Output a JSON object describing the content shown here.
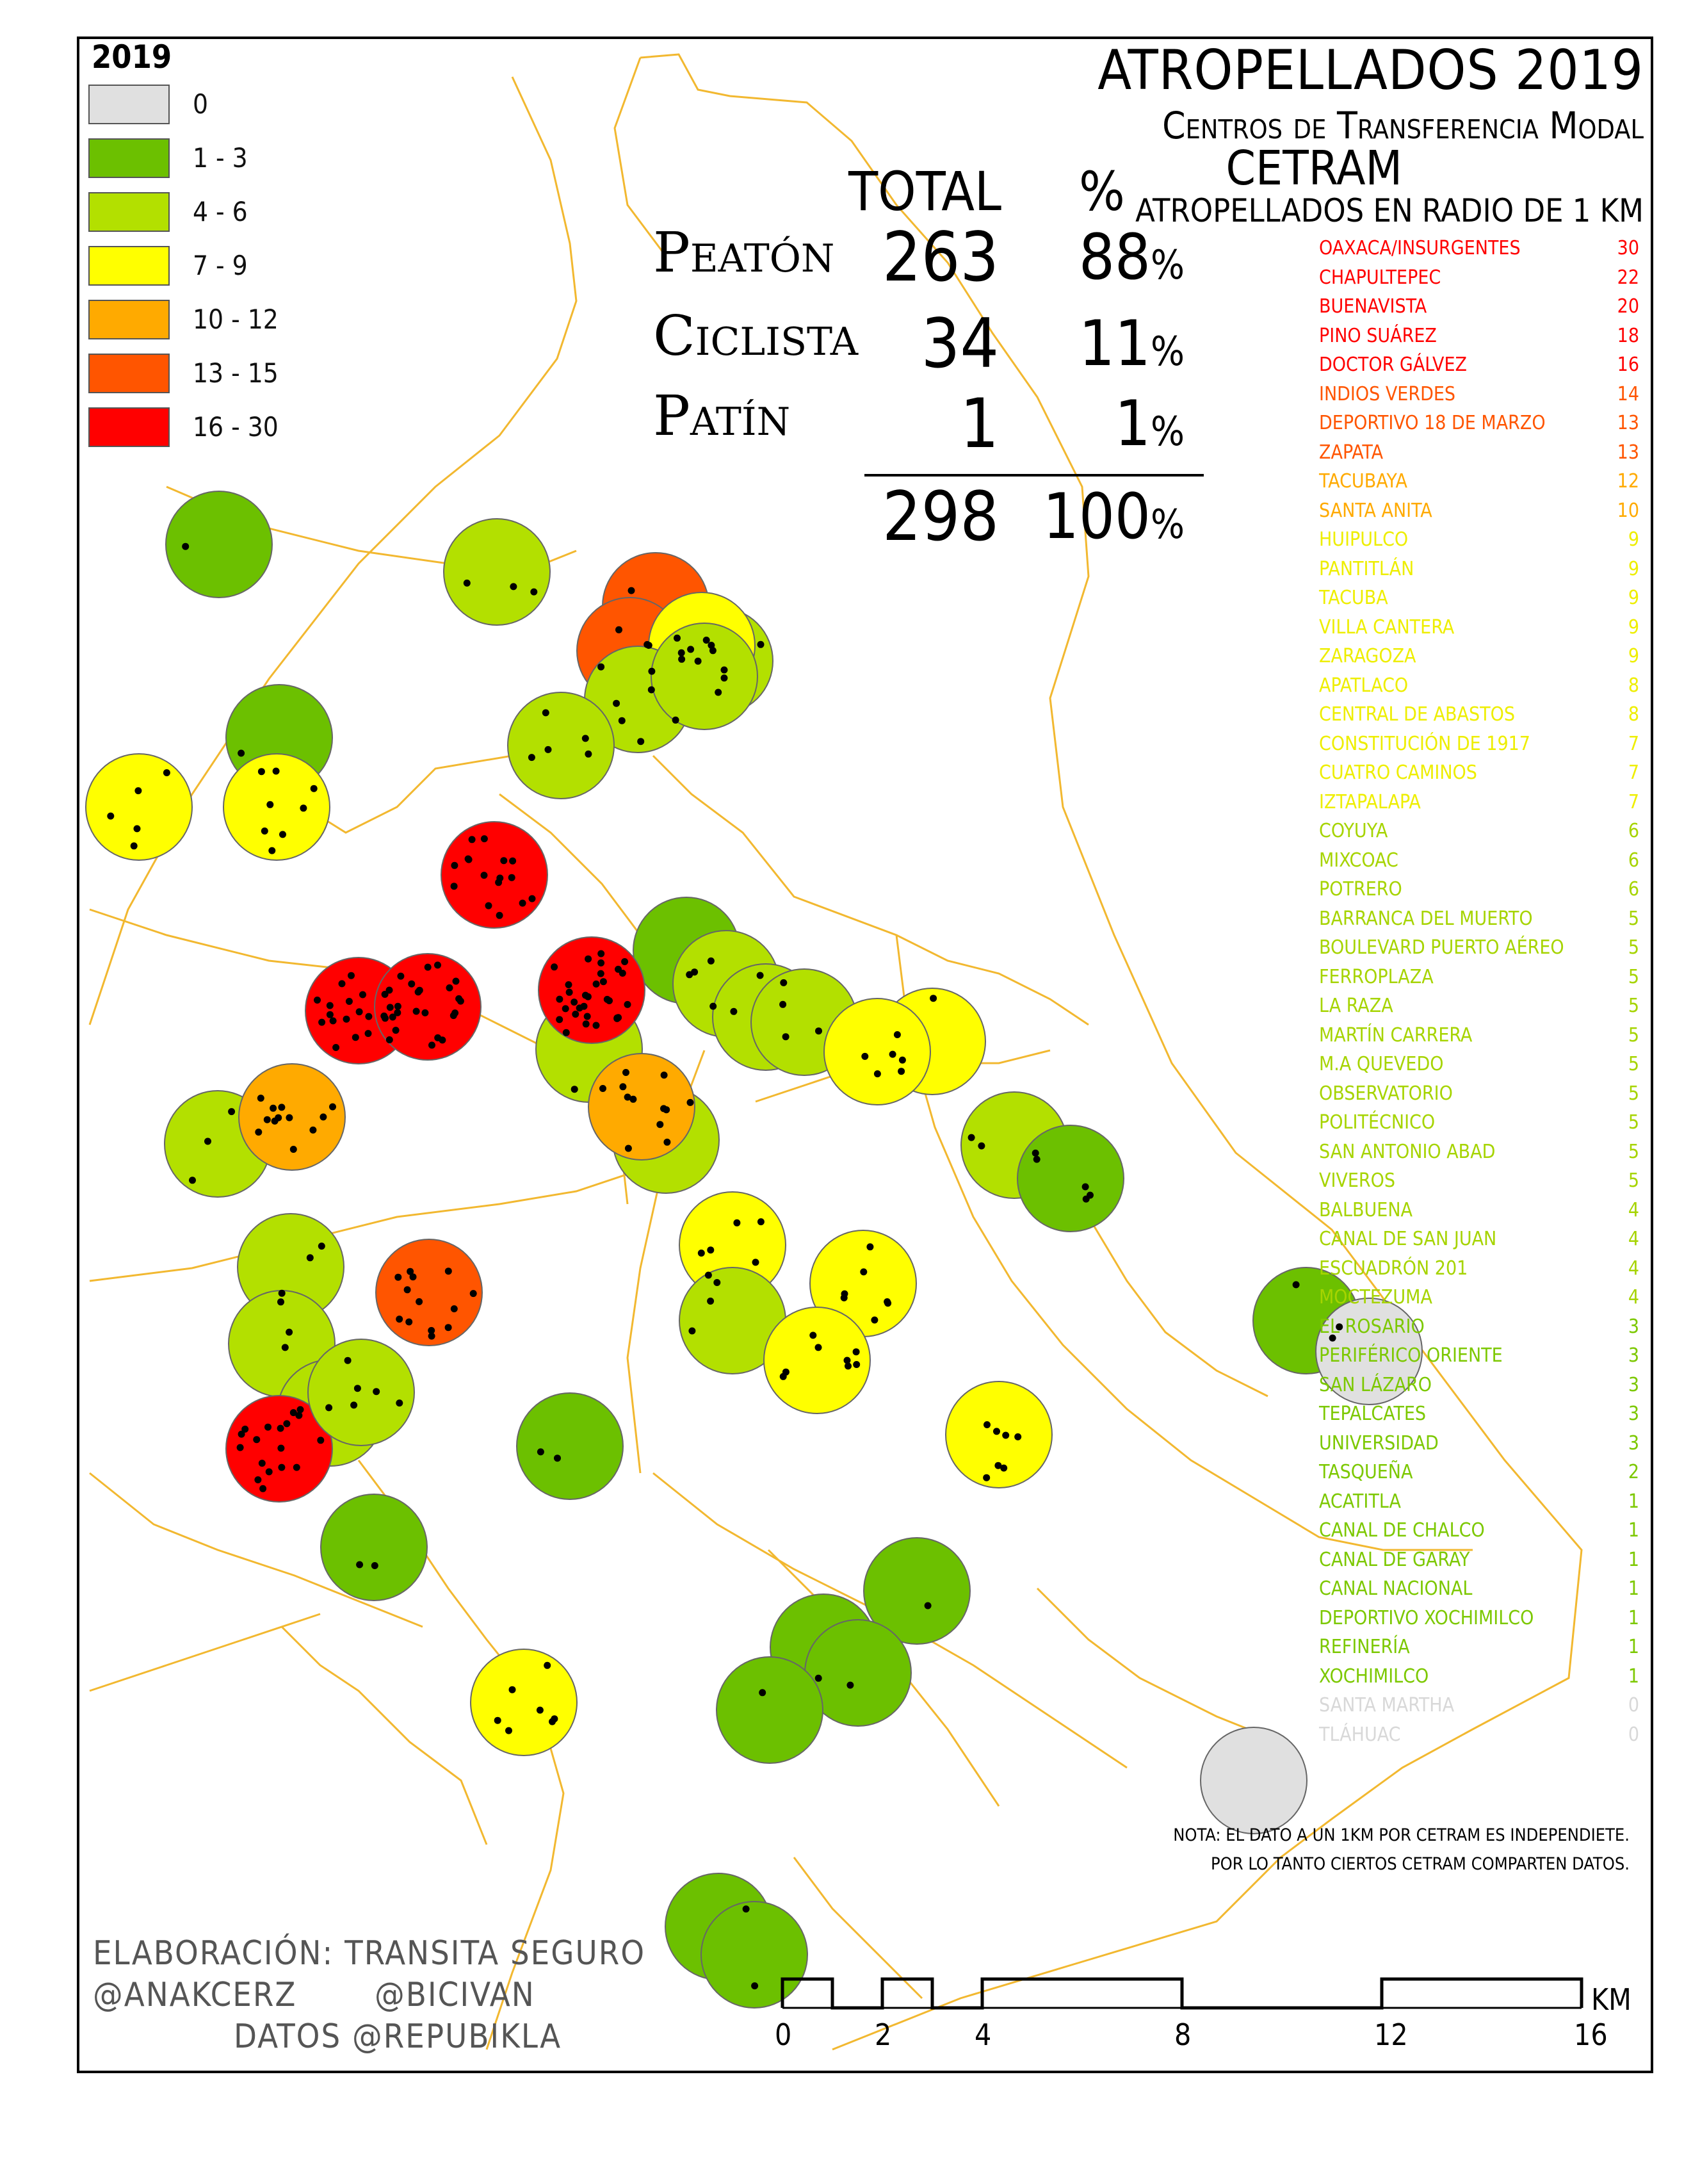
{
  "map": {
    "title": "ATROPELLADOS 2019",
    "subtitle": "Centros de Transferencia Modal",
    "acronym": "CETRAM",
    "radius_heading": "ATROPELLADOS EN RADIO DE 1 KM",
    "note_line1": "NOTA: EL DATO A UN 1KM POR CETRAM ES INDEPENDIETE.",
    "note_line2": "POR LO TANTO CIERTOS CETRAM COMPARTEN DATOS.",
    "credits": {
      "line1": "ELABORACIÓN: TRANSITA SEGURO",
      "handle1": "@ANAKCERZ",
      "handle2": "@BICIVAN",
      "line3": "DATOS   @REPUBIKLA"
    }
  },
  "legend": {
    "year": "2019",
    "classes": [
      {
        "label": "0",
        "color": "#e0e0e0"
      },
      {
        "label": "1 - 3",
        "color": "#6cc000"
      },
      {
        "label": "4 - 6",
        "color": "#b3e000"
      },
      {
        "label": "7 - 9",
        "color": "#ffff00"
      },
      {
        "label": "10 - 12",
        "color": "#ffaa00"
      },
      {
        "label": "13 - 15",
        "color": "#ff5500"
      },
      {
        "label": "16 - 30",
        "color": "#ff0000"
      }
    ]
  },
  "stats": {
    "col_total": "TOTAL",
    "col_pct": "%",
    "rows": [
      {
        "label": "Peatón",
        "total": "263",
        "pct": "88"
      },
      {
        "label": "Ciclista",
        "total": "34",
        "pct": "11"
      },
      {
        "label": "Patín",
        "total": "1",
        "pct": "1"
      }
    ],
    "sum_total": "298",
    "sum_pct": "100",
    "pct_sign": "%"
  },
  "ranking": [
    {
      "name": "OAXACA/INSURGENTES",
      "value": "30",
      "color": "#ff0000"
    },
    {
      "name": "CHAPULTEPEC",
      "value": "22",
      "color": "#ff0000"
    },
    {
      "name": "BUENAVISTA",
      "value": "20",
      "color": "#ff0000"
    },
    {
      "name": "PINO SUÁREZ",
      "value": "18",
      "color": "#ff0000"
    },
    {
      "name": "DOCTOR GÁLVEZ",
      "value": "16",
      "color": "#ff0000"
    },
    {
      "name": "INDIOS VERDES",
      "value": "14",
      "color": "#ff5500"
    },
    {
      "name": "DEPORTIVO 18 DE MARZO",
      "value": "13",
      "color": "#ff5500"
    },
    {
      "name": "ZAPATA",
      "value": "13",
      "color": "#ff5500"
    },
    {
      "name": "TACUBAYA",
      "value": "12",
      "color": "#ffaa00"
    },
    {
      "name": "SANTA ANITA",
      "value": "10",
      "color": "#ffaa00"
    },
    {
      "name": "HUIPULCO",
      "value": "9",
      "color": "#eeee00"
    },
    {
      "name": "PANTITLÁN",
      "value": "9",
      "color": "#eeee00"
    },
    {
      "name": "TACUBA",
      "value": "9",
      "color": "#eeee00"
    },
    {
      "name": "VILLA CANTERA",
      "value": "9",
      "color": "#eeee00"
    },
    {
      "name": "ZARAGOZA",
      "value": "9",
      "color": "#eeee00"
    },
    {
      "name": "APATLACO",
      "value": "8",
      "color": "#eeee00"
    },
    {
      "name": "CENTRAL DE ABASTOS",
      "value": "8",
      "color": "#eeee00"
    },
    {
      "name": "CONSTITUCIÓN DE 1917",
      "value": "7",
      "color": "#eeee00"
    },
    {
      "name": "CUATRO CAMINOS",
      "value": "7",
      "color": "#eeee00"
    },
    {
      "name": "IZTAPALAPA",
      "value": "7",
      "color": "#eeee00"
    },
    {
      "name": "COYUYA",
      "value": "6",
      "color": "#a6d400"
    },
    {
      "name": "MIXCOAC",
      "value": "6",
      "color": "#a6d400"
    },
    {
      "name": "POTRERO",
      "value": "6",
      "color": "#a6d400"
    },
    {
      "name": "BARRANCA DEL MUERTO",
      "value": "5",
      "color": "#a6d400"
    },
    {
      "name": "BOULEVARD PUERTO AÉREO",
      "value": "5",
      "color": "#a6d400"
    },
    {
      "name": "FERROPLAZA",
      "value": "5",
      "color": "#a6d400"
    },
    {
      "name": "LA RAZA",
      "value": "5",
      "color": "#a6d400"
    },
    {
      "name": "MARTÍN CARRERA",
      "value": "5",
      "color": "#a6d400"
    },
    {
      "name": "M.A QUEVEDO",
      "value": "5",
      "color": "#a6d400"
    },
    {
      "name": "OBSERVATORIO",
      "value": "5",
      "color": "#a6d400"
    },
    {
      "name": "POLITÉCNICO",
      "value": "5",
      "color": "#a6d400"
    },
    {
      "name": "SAN ANTONIO ABAD",
      "value": "5",
      "color": "#a6d400"
    },
    {
      "name": "VIVEROS",
      "value": "5",
      "color": "#a6d400"
    },
    {
      "name": "BALBUENA",
      "value": "4",
      "color": "#a6d400"
    },
    {
      "name": "CANAL DE SAN JUAN",
      "value": "4",
      "color": "#a6d400"
    },
    {
      "name": "ESCUADRÓN 201",
      "value": "4",
      "color": "#a6d400"
    },
    {
      "name": "MOCTEZUMA",
      "value": "4",
      "color": "#a6d400"
    },
    {
      "name": "EL ROSARIO",
      "value": "3",
      "color": "#7cc800"
    },
    {
      "name": "PERIFÉRICO ORIENTE",
      "value": "3",
      "color": "#7cc800"
    },
    {
      "name": "SAN LÁZARO",
      "value": "3",
      "color": "#7cc800"
    },
    {
      "name": "TEPALCATES",
      "value": "3",
      "color": "#7cc800"
    },
    {
      "name": "UNIVERSIDAD",
      "value": "3",
      "color": "#7cc800"
    },
    {
      "name": "TASQUEÑA",
      "value": "2",
      "color": "#7cc800"
    },
    {
      "name": "ACATITLA",
      "value": "1",
      "color": "#7cc800"
    },
    {
      "name": "CANAL DE CHALCO",
      "value": "1",
      "color": "#7cc800"
    },
    {
      "name": "CANAL DE GARAY",
      "value": "1",
      "color": "#7cc800"
    },
    {
      "name": "CANAL NACIONAL",
      "value": "1",
      "color": "#7cc800"
    },
    {
      "name": "DEPORTIVO XOCHIMILCO",
      "value": "1",
      "color": "#7cc800"
    },
    {
      "name": "REFINERÍA",
      "value": "1",
      "color": "#7cc800"
    },
    {
      "name": "XOCHIMILCO",
      "value": "1",
      "color": "#7cc800"
    },
    {
      "name": "SANTA MARTHA",
      "value": "0",
      "color": "#d8d8d8"
    },
    {
      "name": "TLÁHUAC",
      "value": "0",
      "color": "#d8d8d8"
    }
  ],
  "scale": {
    "unit": "KM",
    "labels": [
      "0",
      "2",
      "4",
      "8",
      "12",
      "16"
    ]
  }
}
